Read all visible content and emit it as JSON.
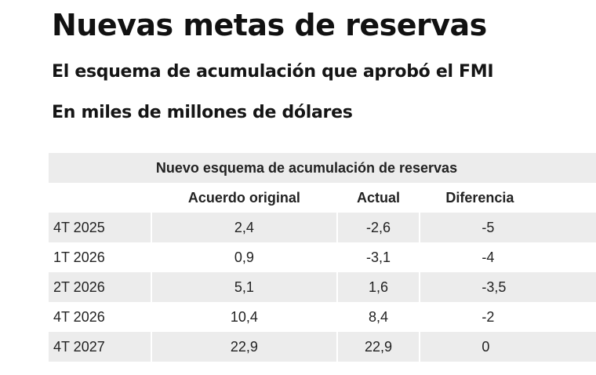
{
  "header": {
    "title": "Nuevas metas de reservas",
    "subtitle": "El esquema de acumulación que aprobó el FMI",
    "unit": "En miles de millones de dólares"
  },
  "table": {
    "caption": "Nuevo esquema de acumulación de reservas",
    "columns": [
      "",
      "Acuerdo original",
      "Actual",
      "Diferencia"
    ],
    "rows": [
      [
        "4T 2025",
        "2,4",
        "-2,6",
        "-5"
      ],
      [
        "1T 2026",
        "0,9",
        "-3,1",
        "-4"
      ],
      [
        "2T 2026",
        "5,1",
        "1,6",
        "-3,5"
      ],
      [
        "4T 2026",
        "10,4",
        "8,4",
        "-2"
      ],
      [
        "4T 2027",
        "22,9",
        "22,9",
        "0"
      ]
    ]
  },
  "colors": {
    "stripe": "#ececec",
    "text": "#222222"
  },
  "chart_data": {
    "type": "table",
    "title": "Nuevas metas de reservas",
    "subtitle": "El esquema de acumulación que aprobó el FMI",
    "unit": "En miles de millones de dólares",
    "caption": "Nuevo esquema de acumulación de reservas",
    "categories": [
      "4T 2025",
      "1T 2026",
      "2T 2026",
      "4T 2026",
      "4T 2027"
    ],
    "series": [
      {
        "name": "Acuerdo original",
        "values": [
          2.4,
          0.9,
          5.1,
          10.4,
          22.9
        ]
      },
      {
        "name": "Actual",
        "values": [
          -2.6,
          -3.1,
          1.6,
          8.4,
          22.9
        ]
      },
      {
        "name": "Diferencia",
        "values": [
          -5,
          -4,
          -3.5,
          -2,
          0
        ]
      }
    ]
  }
}
